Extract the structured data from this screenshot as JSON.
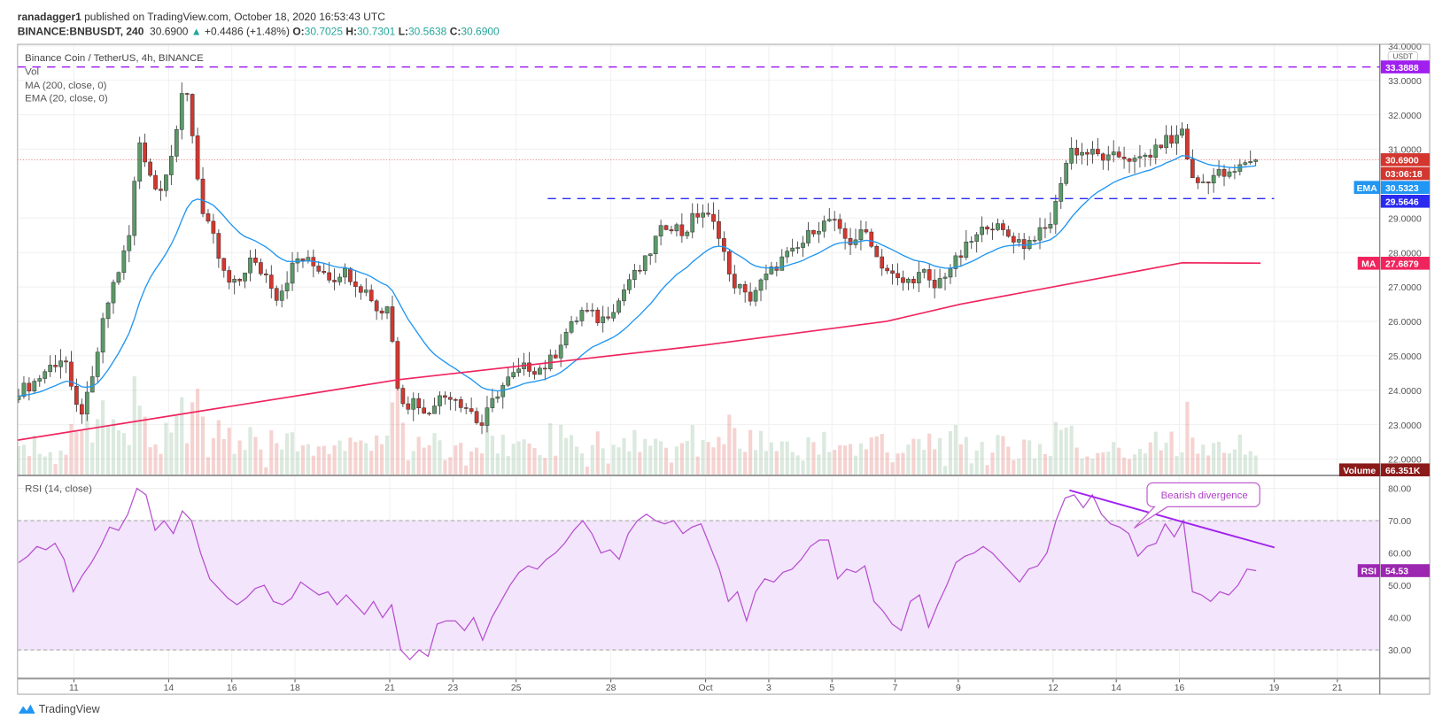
{
  "header": {
    "author": "ranadagger1",
    "published": "published on TradingView.com, October 18, 2020 16:53:43 UTC",
    "symbol": "BINANCE:BNBUSDT, 240",
    "last": "30.6900",
    "change": "+0.4486 (+1.48%)",
    "o_label": "O:",
    "o": "30.7025",
    "h_label": "H:",
    "h": "30.7301",
    "l_label": "L:",
    "l": "30.5638",
    "c_label": "C:",
    "c": "30.6900"
  },
  "legend": {
    "title": "Binance Coin / TetherUS, 4h, BINANCE",
    "vol": "Vol",
    "ma": "MA (200, close, 0)",
    "ema": "EMA (20, close, 0)",
    "rsi": "RSI (14, close)"
  },
  "footer": {
    "brand": "TradingView"
  },
  "colors": {
    "up": "#5b9a68",
    "down": "#d3372f",
    "ema": "#2196f3",
    "ma": "#f0245d",
    "rsi": "#b64fcf",
    "rsi_band": "#f3e5fc",
    "resistance": "#a020f0",
    "support": "#2b2bf0",
    "divergence": "#a020f0"
  },
  "chart_data": {
    "type": "candlestick",
    "title": "Binance Coin / TetherUS, 4h, BINANCE",
    "currency": "USDT",
    "ylim": [
      21.7,
      34.0
    ],
    "time_unit": "days since Aug 31, 2020",
    "x_start_day": 9.25,
    "x_end_day": 48.43,
    "y_ticks": [
      {
        "v": 34,
        "label": "34.0000"
      },
      {
        "v": 33,
        "label": "33.0000"
      },
      {
        "v": 32,
        "label": "32.0000"
      },
      {
        "v": 31,
        "label": "31.0000"
      },
      {
        "v": 29,
        "label": "29.0000"
      },
      {
        "v": 28,
        "label": "28.0000"
      },
      {
        "v": 27,
        "label": "27.0000"
      },
      {
        "v": 26,
        "label": "26.0000"
      },
      {
        "v": 25,
        "label": "25.0000"
      },
      {
        "v": 24,
        "label": "24.0000"
      },
      {
        "v": 23,
        "label": "23.0000"
      },
      {
        "v": 22,
        "label": "22.0000"
      }
    ],
    "x_ticks": [
      {
        "day": 11,
        "label": "11"
      },
      {
        "day": 14,
        "label": "14"
      },
      {
        "day": 16,
        "label": "16"
      },
      {
        "day": 18,
        "label": "18"
      },
      {
        "day": 21,
        "label": "21"
      },
      {
        "day": 23,
        "label": "23"
      },
      {
        "day": 25,
        "label": "25"
      },
      {
        "day": 28,
        "label": "28"
      },
      {
        "day": 31,
        "label": "Oct"
      },
      {
        "day": 33,
        "label": "3"
      },
      {
        "day": 35,
        "label": "5"
      },
      {
        "day": 37,
        "label": "7"
      },
      {
        "day": 39,
        "label": "9"
      },
      {
        "day": 42,
        "label": "12"
      },
      {
        "day": 44,
        "label": "14"
      },
      {
        "day": 46,
        "label": "16"
      },
      {
        "day": 49,
        "label": "19"
      },
      {
        "day": 51,
        "label": "21"
      }
    ],
    "close_samples": [
      24.0,
      24.1,
      24.3,
      24.6,
      24.8,
      25.0,
      23.5,
      23.4,
      24.3,
      25.8,
      26.9,
      27.6,
      28.5,
      31.3,
      30.5,
      29.7,
      30.4,
      31.2,
      33.2,
      31.0,
      29.0,
      28.5,
      27.5,
      27.0,
      27.2,
      27.8,
      27.5,
      27.3,
      26.7,
      27.2,
      27.8,
      27.8,
      27.6,
      27.5,
      27.2,
      27.5,
      27.3,
      27.0,
      26.8,
      26.2,
      26.5,
      24.2,
      23.5,
      23.8,
      23.2,
      23.7,
      23.8,
      23.9,
      23.6,
      23.4,
      22.9,
      23.5,
      24.0,
      24.3,
      24.5,
      24.7,
      24.6,
      24.7,
      25.0,
      25.6,
      25.9,
      26.3,
      26.2,
      26.0,
      26.3,
      26.6,
      27.2,
      27.4,
      27.8,
      28.4,
      28.8,
      28.8,
      28.5,
      29.0,
      29.2,
      28.9,
      28.5,
      27.2,
      27.0,
      26.6,
      27.0,
      27.3,
      27.6,
      27.9,
      28.0,
      28.3,
      28.7,
      28.8,
      29.0,
      28.5,
      28.3,
      28.5,
      28.6,
      27.8,
      27.5,
      27.2,
      27.1,
      27.3,
      27.4,
      26.9,
      27.3,
      27.6,
      27.9,
      28.3,
      28.5,
      28.9,
      28.7,
      28.5,
      28.4,
      28.2,
      28.5,
      28.6,
      29.0,
      30.3,
      31.0,
      30.9,
      30.9,
      30.8,
      30.7,
      30.8,
      30.8,
      30.6,
      30.8,
      30.9,
      31.3,
      31.2,
      31.6,
      30.1,
      30.0,
      30.2,
      30.3,
      30.2,
      30.4,
      30.7,
      30.69
    ],
    "ma200": [
      {
        "day": 9.22,
        "v": 22.55
      },
      {
        "day": 21.23,
        "v": 24.3
      },
      {
        "day": 30.88,
        "v": 25.3
      },
      {
        "day": 36.73,
        "v": 26.0
      },
      {
        "day": 39.07,
        "v": 26.5
      },
      {
        "day": 43.75,
        "v": 27.3
      },
      {
        "day": 46.09,
        "v": 27.7
      },
      {
        "day": 48.57,
        "v": 27.69
      }
    ],
    "levels": [
      {
        "name": "resistance",
        "value": 33.3888,
        "label": "33.3888",
        "from_day": 9.2,
        "to_day": null
      },
      {
        "name": "support",
        "value": 29.5646,
        "label": "29.5646",
        "from_day": 26.0,
        "to_day": 49.0
      }
    ],
    "last_price": {
      "value": 30.69,
      "label": "30.6900",
      "countdown": "03:06:18"
    },
    "ema_label": {
      "tag": "EMA",
      "value": 30.5323,
      "label": "30.5323"
    },
    "ma_label": {
      "tag": "MA",
      "value": 27.6879,
      "label": "27.6879"
    },
    "volume_label": {
      "tag": "Volume",
      "label": "66.351K"
    },
    "rsi": {
      "ylim": [
        22,
        85
      ],
      "band": [
        30,
        70
      ],
      "y_ticks": [
        {
          "v": 80,
          "label": "80.00"
        },
        {
          "v": 70,
          "label": "70.00"
        },
        {
          "v": 60,
          "label": "60.00"
        },
        {
          "v": 50,
          "label": "50.00"
        },
        {
          "v": 40,
          "label": "40.00"
        },
        {
          "v": 30,
          "label": "30.00"
        }
      ],
      "samples": [
        57,
        59,
        62,
        61,
        63,
        58,
        48,
        53,
        57,
        62,
        68,
        67,
        72,
        80,
        78,
        67,
        70,
        66,
        73,
        70,
        60,
        52,
        49,
        46,
        44,
        46,
        49,
        50,
        45,
        44,
        46,
        51,
        49,
        47,
        48,
        44,
        47,
        44,
        41,
        45,
        40,
        44,
        30,
        27,
        30,
        28,
        38,
        39,
        39,
        36,
        40,
        33,
        40,
        45,
        50,
        54,
        56,
        55,
        58,
        60,
        63,
        67,
        70,
        66,
        60,
        61,
        58,
        66,
        70,
        72,
        70,
        69,
        70,
        66,
        68,
        69,
        62,
        55,
        45,
        48,
        39,
        48,
        52,
        51,
        54,
        55,
        58,
        62,
        64,
        64,
        52,
        55,
        54,
        56,
        45,
        42,
        38,
        36,
        45,
        47,
        37,
        44,
        50,
        57,
        59,
        60,
        62,
        60,
        57,
        54,
        51,
        55,
        56,
        60,
        70,
        77,
        78,
        74,
        78,
        72,
        69,
        68,
        66,
        59,
        62,
        63,
        69,
        65,
        70,
        48,
        47,
        45,
        48,
        47,
        50,
        55,
        54.53
      ],
      "last": {
        "tag": "RSI",
        "label": "54.53"
      },
      "divergence": {
        "from": {
          "day": 42.52,
          "v": 79.4
        },
        "to": {
          "day": 49.01,
          "v": 61.7
        },
        "annotation": "Bearish divergence"
      }
    }
  }
}
